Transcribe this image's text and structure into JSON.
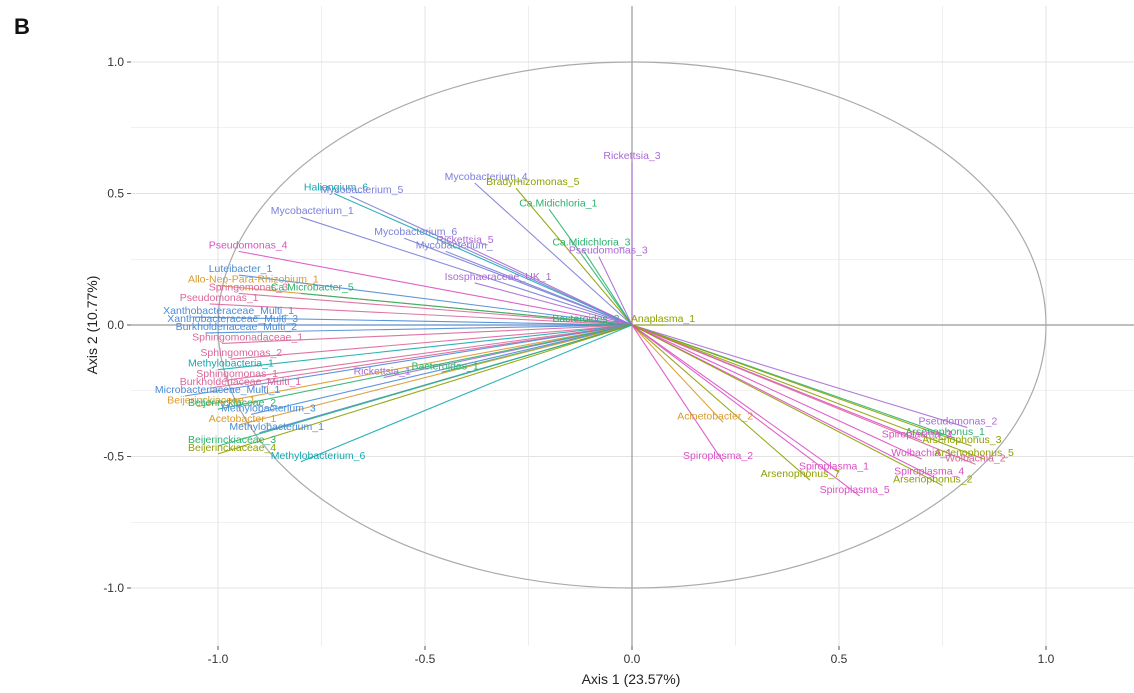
{
  "panel_label": "B",
  "chart_data": {
    "type": "scatter",
    "subtype": "correlation-circle-biplot",
    "xlabel": "Axis 1 (23.57%)",
    "ylabel": "Axis 2 (10.77%)",
    "xlim": [
      -1.22,
      1.22
    ],
    "ylim": [
      -1.22,
      1.22
    ],
    "x_ticks": [
      -1.0,
      -0.5,
      0.0,
      0.5,
      1.0
    ],
    "y_ticks": [
      -1.0,
      -0.5,
      0.0,
      0.5,
      1.0
    ],
    "x_tick_labels": [
      "-1.0",
      "-0.5",
      "0.0",
      "0.5",
      "1.0"
    ],
    "y_tick_labels": [
      "-1.0",
      "-0.5",
      "0.0",
      "0.5",
      "1.0"
    ],
    "grid": true,
    "unit_circle": true,
    "colors": {
      "purple": "#a96ad6",
      "magenta": "#dc4fc4",
      "green": "#2bb26f",
      "olive": "#8fa000",
      "teal": "#17a8b0",
      "blue": "#4b8bd6",
      "orange": "#d99a2e",
      "slate": "#7b7fd8",
      "rose": "#d9679a",
      "circle": "#aaaaaa",
      "grid": "#e3e3e3",
      "zero_line": "#999999"
    },
    "vectors": [
      {
        "label": "Rickettsia_3",
        "x": 0.0,
        "y": 0.62,
        "color": "purple"
      },
      {
        "label": "Mycobacterium_4",
        "x": -0.38,
        "y": 0.54,
        "color": "slate"
      },
      {
        "label": "Bradyrhizomonas_5",
        "x": -0.28,
        "y": 0.52,
        "color": "olive"
      },
      {
        "label": "Haliangium_6",
        "x": -0.72,
        "y": 0.5,
        "color": "teal"
      },
      {
        "label": "Mycobacterium_5",
        "x": -0.68,
        "y": 0.49,
        "color": "slate"
      },
      {
        "label": "Ca.Midichloria_1",
        "x": -0.2,
        "y": 0.44,
        "color": "green"
      },
      {
        "label": "Mycobacterium_1",
        "x": -0.8,
        "y": 0.41,
        "color": "slate"
      },
      {
        "label": "Mycobacterium_6",
        "x": -0.55,
        "y": 0.33,
        "color": "slate"
      },
      {
        "label": "Rickettsia_5",
        "x": -0.4,
        "y": 0.3,
        "color": "purple"
      },
      {
        "label": "Mycobacterium_",
        "x": -0.45,
        "y": 0.28,
        "color": "slate"
      },
      {
        "label": "Ca.Midichloria_3",
        "x": -0.12,
        "y": 0.29,
        "color": "green"
      },
      {
        "label": "Pseudomonas_3",
        "x": -0.08,
        "y": 0.26,
        "color": "purple"
      },
      {
        "label": "Pseudomonas_4",
        "x": -0.95,
        "y": 0.28,
        "color": "magenta"
      },
      {
        "label": "Isosphaeraceae_UK_1",
        "x": -0.38,
        "y": 0.16,
        "color": "purple"
      },
      {
        "label": "Luteibacter_1",
        "x": -0.95,
        "y": 0.19,
        "color": "blue"
      },
      {
        "label": "Allo-Neo-Para-Rhizobium_1",
        "x": -1.0,
        "y": 0.15,
        "color": "orange"
      },
      {
        "label": "Springomonas_3",
        "x": -0.95,
        "y": 0.12,
        "color": "rose"
      },
      {
        "label": "Ca.Microbacter_5",
        "x": -0.8,
        "y": 0.12,
        "color": "green"
      },
      {
        "label": "Pseudomonas_1",
        "x": -1.02,
        "y": 0.08,
        "color": "rose"
      },
      {
        "label": "Xanthobacteraceae_Multi_1",
        "x": -1.06,
        "y": 0.03,
        "color": "blue"
      },
      {
        "label": "Xanthobacteraceae_Multi_3",
        "x": -1.05,
        "y": 0.0,
        "color": "blue"
      },
      {
        "label": "Burkholderiaceae_Multi_2",
        "x": -1.03,
        "y": -0.03,
        "color": "blue"
      },
      {
        "label": "Sphingomonadaceae_1",
        "x": -0.99,
        "y": -0.07,
        "color": "rose"
      },
      {
        "label": "Sphingomonas_2",
        "x": -0.97,
        "y": -0.13,
        "color": "rose"
      },
      {
        "label": "Methylobacteria_1",
        "x": -1.0,
        "y": -0.17,
        "color": "teal"
      },
      {
        "label": "Sphingomonas_1",
        "x": -0.98,
        "y": -0.21,
        "color": "rose"
      },
      {
        "label": "Burkholderiaceae_Multi_1",
        "x": -1.02,
        "y": -0.24,
        "color": "rose"
      },
      {
        "label": "Microbacteriaceae_Multi_1",
        "x": -1.08,
        "y": -0.27,
        "color": "blue"
      },
      {
        "label": "Rickettsia_1",
        "x": -0.6,
        "y": -0.2,
        "color": "purple"
      },
      {
        "label": "Bacteroides_1",
        "x": -0.46,
        "y": -0.18,
        "color": "green"
      },
      {
        "label": "Beijerinckiaceae_1",
        "x": -1.05,
        "y": -0.31,
        "color": "orange"
      },
      {
        "label": "Beijerinckiaceae_2",
        "x": -1.0,
        "y": -0.32,
        "color": "green"
      },
      {
        "label": "Methylobacterium_3",
        "x": -0.92,
        "y": -0.34,
        "color": "blue"
      },
      {
        "label": "Acetobacter_1",
        "x": -0.95,
        "y": -0.38,
        "color": "orange"
      },
      {
        "label": "Methylobacterium_1",
        "x": -0.9,
        "y": -0.41,
        "color": "blue"
      },
      {
        "label": "Beijerinckiaceae_3",
        "x": -1.0,
        "y": -0.46,
        "color": "green"
      },
      {
        "label": "Beijerinckiaceae_4",
        "x": -1.0,
        "y": -0.49,
        "color": "olive"
      },
      {
        "label": "Methylobacterium_6",
        "x": -0.8,
        "y": -0.52,
        "color": "teal"
      },
      {
        "label": "Bacteroides_2",
        "x": -0.12,
        "y": 0.0,
        "color": "green"
      },
      {
        "label": "Anaplasma_1",
        "x": 0.08,
        "y": 0.0,
        "color": "olive"
      },
      {
        "label": "Acinetobacter_2",
        "x": 0.22,
        "y": -0.37,
        "color": "orange"
      },
      {
        "label": "Spiroplasma_2",
        "x": 0.22,
        "y": -0.52,
        "color": "magenta"
      },
      {
        "label": "Pseudomonas_2",
        "x": 0.81,
        "y": -0.39,
        "color": "purple"
      },
      {
        "label": "Arsenophonus_1",
        "x": 0.78,
        "y": -0.43,
        "color": "green"
      },
      {
        "label": "Spiroplasma_3",
        "x": 0.7,
        "y": -0.44,
        "color": "magenta"
      },
      {
        "label": "Arsenophonus_3",
        "x": 0.82,
        "y": -0.46,
        "color": "olive"
      },
      {
        "label": "Wolbachia_1",
        "x": 0.7,
        "y": -0.51,
        "color": "magenta"
      },
      {
        "label": "Arsenophonus_5",
        "x": 0.85,
        "y": -0.51,
        "color": "olive"
      },
      {
        "label": "Wolbachia_2",
        "x": 0.83,
        "y": -0.53,
        "color": "rose"
      },
      {
        "label": "Spiroplasma_1",
        "x": 0.5,
        "y": -0.56,
        "color": "magenta"
      },
      {
        "label": "Spiroplasma_4",
        "x": 0.73,
        "y": -0.58,
        "color": "magenta"
      },
      {
        "label": "Arsenophonus_7",
        "x": 0.43,
        "y": -0.59,
        "color": "olive"
      },
      {
        "label": "Arsenophonus_2",
        "x": 0.75,
        "y": -0.61,
        "color": "olive"
      },
      {
        "label": "Spiroplasma_5",
        "x": 0.55,
        "y": -0.65,
        "color": "magenta"
      }
    ]
  }
}
